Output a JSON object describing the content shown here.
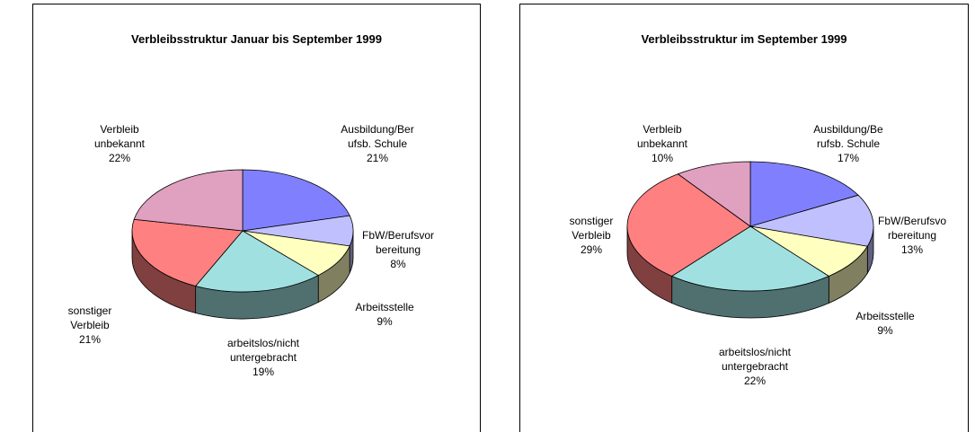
{
  "chart_data": [
    {
      "type": "pie",
      "title": "Verbleibsstruktur Januar bis September 1999",
      "categories": [
        "Ausbildung/Ber\nufsb. Schule",
        "FbW/Berufsvor\nbereitung",
        "Arbeitsstelle",
        "arbeitslos/nicht\nuntergebracht",
        "sonstiger\nVerbleib",
        "Verbleib\nunbekannt"
      ],
      "values": [
        21,
        8,
        9,
        19,
        21,
        22
      ],
      "value_labels": [
        "21%",
        "8%",
        "9%",
        "19%",
        "21%",
        "22%"
      ],
      "colors": [
        "#8080ff",
        "#c0c0ff",
        "#ffffc0",
        "#a0e0e0",
        "#ff8080",
        "#e0a0c0"
      ]
    },
    {
      "type": "pie",
      "title": "Verbleibsstruktur im September 1999",
      "categories": [
        "Ausbildung/Be\nrufsb. Schule",
        "FbW/Berufsvo\nrbereitung",
        "Arbeitsstelle",
        "arbeitslos/nicht\nuntergebracht",
        "sonstiger\nVerbleib",
        "Verbleib\nunbekannt"
      ],
      "values": [
        17,
        13,
        9,
        22,
        29,
        10
      ],
      "value_labels": [
        "17%",
        "13%",
        "9%",
        "22%",
        "29%",
        "10%"
      ],
      "colors": [
        "#8080ff",
        "#c0c0ff",
        "#ffffc0",
        "#a0e0e0",
        "#ff8080",
        "#e0a0c0"
      ]
    }
  ]
}
